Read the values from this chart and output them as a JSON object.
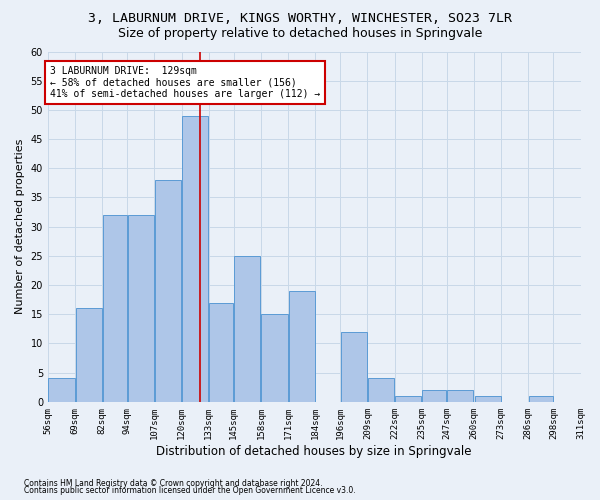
{
  "title1": "3, LABURNUM DRIVE, KINGS WORTHY, WINCHESTER, SO23 7LR",
  "title2": "Size of property relative to detached houses in Springvale",
  "xlabel": "Distribution of detached houses by size in Springvale",
  "ylabel": "Number of detached properties",
  "footnote1": "Contains HM Land Registry data © Crown copyright and database right 2024.",
  "footnote2": "Contains public sector information licensed under the Open Government Licence v3.0.",
  "bar_left_edges": [
    56,
    69,
    82,
    94,
    107,
    120,
    133,
    145,
    158,
    171,
    184,
    196,
    209,
    222,
    235,
    247,
    260,
    273,
    286,
    298
  ],
  "bar_widths": [
    13,
    13,
    12,
    13,
    13,
    13,
    12,
    13,
    13,
    13,
    12,
    13,
    13,
    13,
    12,
    13,
    13,
    13,
    12,
    13
  ],
  "bar_heights": [
    4,
    16,
    32,
    32,
    38,
    49,
    17,
    25,
    15,
    19,
    0,
    12,
    4,
    1,
    2,
    2,
    1,
    0,
    1,
    0
  ],
  "tick_labels": [
    "56sqm",
    "69sqm",
    "82sqm",
    "94sqm",
    "107sqm",
    "120sqm",
    "133sqm",
    "145sqm",
    "158sqm",
    "171sqm",
    "184sqm",
    "196sqm",
    "209sqm",
    "222sqm",
    "235sqm",
    "247sqm",
    "260sqm",
    "273sqm",
    "286sqm",
    "298sqm",
    "311sqm"
  ],
  "bar_color": "#aec6e8",
  "bar_edgecolor": "#5b9bd5",
  "bg_color": "#eaf0f8",
  "grid_color": "#c8d8e8",
  "vline_x": 129,
  "vline_color": "#cc0000",
  "annotation_text": "3 LABURNUM DRIVE:  129sqm\n← 58% of detached houses are smaller (156)\n41% of semi-detached houses are larger (112) →",
  "annotation_box_color": "#ffffff",
  "annotation_box_edgecolor": "#cc0000",
  "ylim": [
    0,
    60
  ],
  "yticks": [
    0,
    5,
    10,
    15,
    20,
    25,
    30,
    35,
    40,
    45,
    50,
    55,
    60
  ],
  "title1_fontsize": 9.5,
  "title2_fontsize": 9,
  "xlabel_fontsize": 8.5,
  "ylabel_fontsize": 8,
  "annotation_fontsize": 7,
  "tick_fontsize": 6.5,
  "ytick_fontsize": 7
}
